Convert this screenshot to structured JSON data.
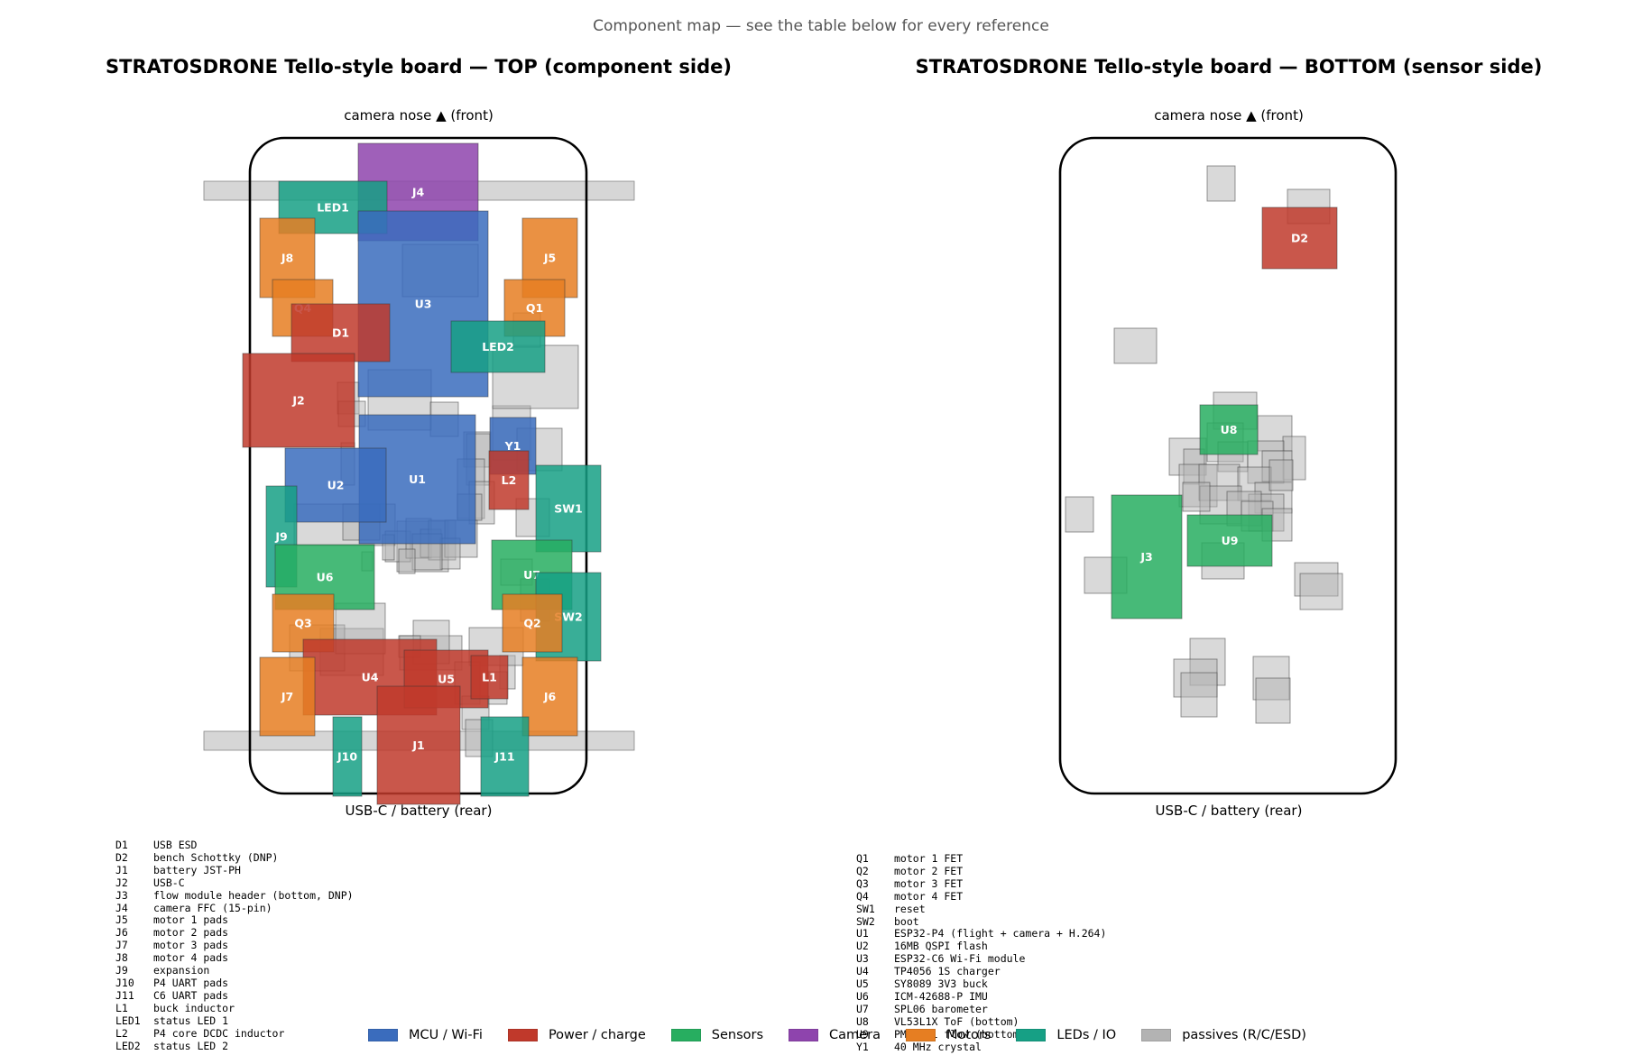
{
  "figure": {
    "suptitle": "Component map — see the table below for every reference"
  },
  "categories": {
    "mcu": {
      "label": "MCU / Wi-Fi",
      "color": "#3a6cbd"
    },
    "power": {
      "label": "Power / charge",
      "color": "#c0392b"
    },
    "sensors": {
      "label": "Sensors",
      "color": "#27ae60"
    },
    "camera": {
      "label": "Camera",
      "color": "#8e44ad"
    },
    "motors": {
      "label": "Motors",
      "color": "#e67e22"
    },
    "leds": {
      "label": "LEDs / IO",
      "color": "#16a085"
    },
    "passives": {
      "label": "passives (R/C/ESD)",
      "color": "#b3b3b3"
    }
  },
  "legend_order": [
    "mcu",
    "power",
    "sensors",
    "camera",
    "motors",
    "leds",
    "passives"
  ],
  "top_view": {
    "title": "STRATOSDRONE Tello-style board — TOP (component side)",
    "front_label": "camera nose ▲ (front)",
    "rear_label": "USB-C / battery (rear)",
    "components": [
      {
        "ref": "J4",
        "cat": "camera"
      },
      {
        "ref": "LED1",
        "cat": "leds"
      },
      {
        "ref": "U3",
        "cat": "mcu"
      },
      {
        "ref": "J8",
        "cat": "motors"
      },
      {
        "ref": "J5",
        "cat": "motors"
      },
      {
        "ref": "Q4",
        "cat": "motors"
      },
      {
        "ref": "Q1",
        "cat": "motors"
      },
      {
        "ref": "D1",
        "cat": "power"
      },
      {
        "ref": "LED2",
        "cat": "leds"
      },
      {
        "ref": "J2",
        "cat": "power"
      },
      {
        "ref": "U1",
        "cat": "mcu"
      },
      {
        "ref": "Y1",
        "cat": "mcu"
      },
      {
        "ref": "U2",
        "cat": "mcu"
      },
      {
        "ref": "L2",
        "cat": "power"
      },
      {
        "ref": "SW1",
        "cat": "leds"
      },
      {
        "ref": "J9",
        "cat": "leds"
      },
      {
        "ref": "U6",
        "cat": "sensors"
      },
      {
        "ref": "U7",
        "cat": "sensors"
      },
      {
        "ref": "SW2",
        "cat": "leds"
      },
      {
        "ref": "Q3",
        "cat": "motors"
      },
      {
        "ref": "Q2",
        "cat": "motors"
      },
      {
        "ref": "U4",
        "cat": "power"
      },
      {
        "ref": "U5",
        "cat": "power"
      },
      {
        "ref": "L1",
        "cat": "power"
      },
      {
        "ref": "J7",
        "cat": "motors"
      },
      {
        "ref": "J6",
        "cat": "motors"
      },
      {
        "ref": "J10",
        "cat": "leds"
      },
      {
        "ref": "J1",
        "cat": "power"
      },
      {
        "ref": "J11",
        "cat": "leds"
      }
    ]
  },
  "bottom_view": {
    "title": "STRATOSDRONE Tello-style board — BOTTOM (sensor side)",
    "front_label": "camera nose ▲ (front)",
    "rear_label": "USB-C / battery (rear)",
    "components": [
      {
        "ref": "D2",
        "cat": "power"
      },
      {
        "ref": "U8",
        "cat": "sensors"
      },
      {
        "ref": "U9",
        "cat": "sensors"
      },
      {
        "ref": "J3",
        "cat": "sensors"
      }
    ]
  },
  "reference_table": {
    "left": [
      {
        "ref": "D1",
        "desc": "USB ESD"
      },
      {
        "ref": "D2",
        "desc": "bench Schottky (DNP)"
      },
      {
        "ref": "J1",
        "desc": "battery JST-PH"
      },
      {
        "ref": "J2",
        "desc": "USB-C"
      },
      {
        "ref": "J3",
        "desc": "flow module header (bottom, DNP)"
      },
      {
        "ref": "J4",
        "desc": "camera FFC (15-pin)"
      },
      {
        "ref": "J5",
        "desc": "motor 1 pads"
      },
      {
        "ref": "J6",
        "desc": "motor 2 pads"
      },
      {
        "ref": "J7",
        "desc": "motor 3 pads"
      },
      {
        "ref": "J8",
        "desc": "motor 4 pads"
      },
      {
        "ref": "J9",
        "desc": "expansion"
      },
      {
        "ref": "J10",
        "desc": "P4 UART pads"
      },
      {
        "ref": "J11",
        "desc": "C6 UART pads"
      },
      {
        "ref": "L1",
        "desc": "buck inductor"
      },
      {
        "ref": "LED1",
        "desc": "status LED 1"
      },
      {
        "ref": "L2",
        "desc": "P4 core DCDC inductor"
      },
      {
        "ref": "LED2",
        "desc": "status LED 2"
      }
    ],
    "right": [
      {
        "ref": "Q1",
        "desc": "motor 1 FET"
      },
      {
        "ref": "Q2",
        "desc": "motor 2 FET"
      },
      {
        "ref": "Q3",
        "desc": "motor 3 FET"
      },
      {
        "ref": "Q4",
        "desc": "motor 4 FET"
      },
      {
        "ref": "SW1",
        "desc": "reset"
      },
      {
        "ref": "SW2",
        "desc": "boot"
      },
      {
        "ref": "U1",
        "desc": "ESP32-P4 (flight + camera + H.264)"
      },
      {
        "ref": "U2",
        "desc": "16MB QSPI flash"
      },
      {
        "ref": "U3",
        "desc": "ESP32-C6 Wi-Fi module"
      },
      {
        "ref": "U4",
        "desc": "TP4056 1S charger"
      },
      {
        "ref": "U5",
        "desc": "SY8089 3V3 buck"
      },
      {
        "ref": "U6",
        "desc": "ICM-42688-P IMU"
      },
      {
        "ref": "U7",
        "desc": "SPL06 barometer"
      },
      {
        "ref": "U8",
        "desc": "VL53L1X ToF (bottom)"
      },
      {
        "ref": "U9",
        "desc": "PMW3901 flow (bottom)"
      },
      {
        "ref": "Y1",
        "desc": "40 MHz crystal"
      }
    ]
  }
}
